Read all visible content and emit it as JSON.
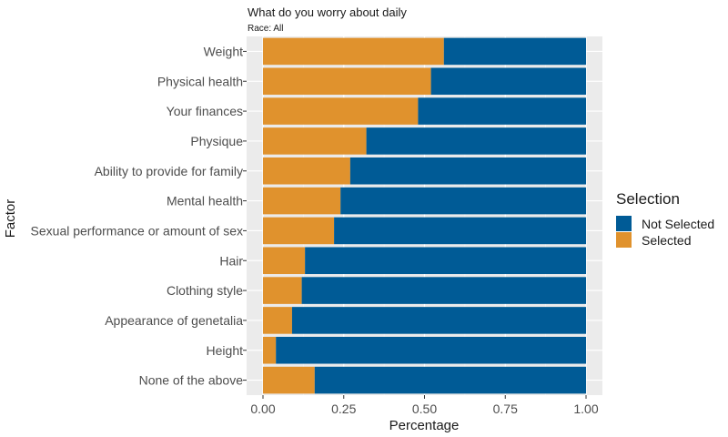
{
  "chart_data": {
    "type": "bar",
    "orientation": "horizontal",
    "stacked": true,
    "title": "What do you worry about daily",
    "subtitle": "Race: All",
    "xlabel": "Percentage",
    "ylabel": "Factor",
    "xlim": [
      0,
      1
    ],
    "xticks": [
      "0.00",
      "0.25",
      "0.50",
      "0.75",
      "1.00"
    ],
    "grid": true,
    "legend": {
      "title": "Selection",
      "position": "right",
      "entries": [
        {
          "name": "Not Selected",
          "color": "#005b96"
        },
        {
          "name": "Selected",
          "color": "#e0922d"
        }
      ]
    },
    "categories": [
      "Weight",
      "Physical health",
      "Your finances",
      "Physique",
      "Ability to provide for family",
      "Mental health",
      "Sexual performance or amount of sex",
      "Hair",
      "Clothing style",
      "Appearance of genetalia",
      "Height",
      "None of the above"
    ],
    "series": [
      {
        "name": "Selected",
        "color": "#e0922d",
        "values": [
          0.56,
          0.52,
          0.48,
          0.32,
          0.27,
          0.24,
          0.22,
          0.13,
          0.12,
          0.09,
          0.04,
          0.16
        ]
      },
      {
        "name": "Not Selected",
        "color": "#005b96",
        "values": [
          0.44,
          0.48,
          0.52,
          0.68,
          0.73,
          0.76,
          0.78,
          0.87,
          0.88,
          0.91,
          0.96,
          0.84
        ]
      }
    ]
  }
}
